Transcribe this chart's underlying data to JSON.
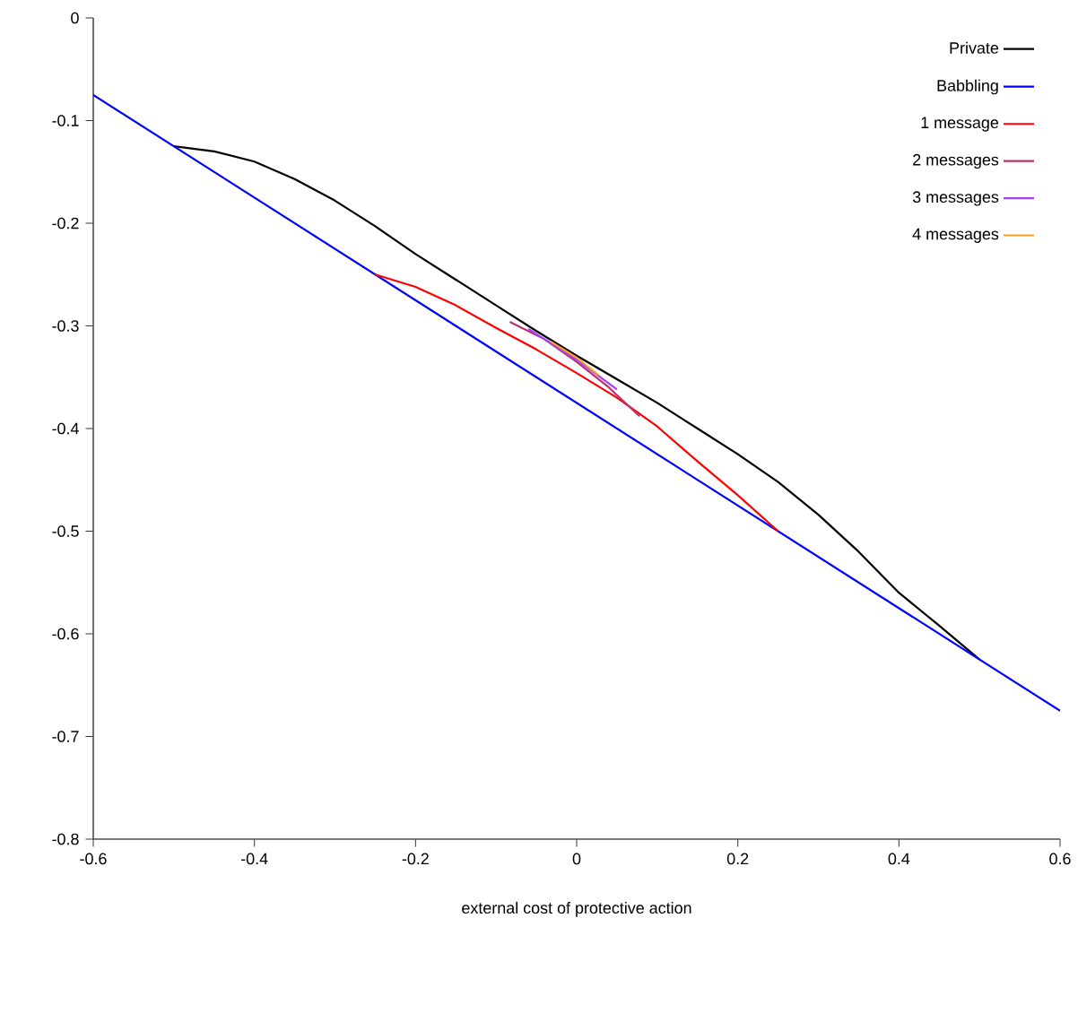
{
  "chart_data": {
    "type": "line",
    "xlabel": "external cost of protective action",
    "xlim": [
      -0.6,
      0.6
    ],
    "ylim": [
      -0.8,
      0
    ],
    "xticks": [
      -0.6,
      -0.4,
      -0.2,
      0,
      0.2,
      0.4,
      0.6
    ],
    "yticks": [
      -0.8,
      -0.7,
      -0.6,
      -0.5,
      -0.4,
      -0.3,
      -0.2,
      -0.1,
      0
    ],
    "legend": "top right",
    "marker": "none",
    "line_style": "solid",
    "series": [
      {
        "name": "Private",
        "color": "#000000",
        "x": [
          -0.5,
          -0.45,
          -0.4,
          -0.35,
          -0.3,
          -0.25,
          -0.2,
          -0.15,
          -0.1,
          -0.05,
          0,
          0.05,
          0.1,
          0.15,
          0.2,
          0.25,
          0.3,
          0.35,
          0.4,
          0.45,
          0.5
        ],
        "values": [
          -0.125,
          -0.13,
          -0.14,
          -0.157,
          -0.178,
          -0.203,
          -0.23,
          -0.255,
          -0.28,
          -0.305,
          -0.329,
          -0.352,
          -0.375,
          -0.4,
          -0.425,
          -0.452,
          -0.484,
          -0.52,
          -0.56,
          -0.592,
          -0.625
        ]
      },
      {
        "name": "Babbling",
        "color": "#0000ff",
        "x": [
          -0.6,
          0.6
        ],
        "values": [
          -0.075,
          -0.675
        ]
      },
      {
        "name": "1 message",
        "color": "#ff0000",
        "x": [
          -0.25,
          -0.2,
          -0.15,
          -0.1,
          -0.05,
          0,
          0.05,
          0.1,
          0.15,
          0.2,
          0.25
        ],
        "values": [
          -0.25,
          -0.262,
          -0.28,
          -0.302,
          -0.323,
          -0.346,
          -0.37,
          -0.398,
          -0.432,
          -0.465,
          -0.5
        ]
      },
      {
        "name": "2 messages",
        "color": "#c0306f",
        "x": [
          -0.083,
          -0.04,
          0,
          0.04,
          0.078
        ],
        "values": [
          -0.296,
          -0.313,
          -0.335,
          -0.36,
          -0.388
        ]
      },
      {
        "name": "3 messages",
        "color": "#a040ff",
        "x": [
          -0.06,
          0,
          0.05
        ],
        "values": [
          -0.303,
          -0.333,
          -0.362
        ]
      },
      {
        "name": "4 messages",
        "color": "#ffa020",
        "x": [
          -0.033,
          0,
          0.027
        ],
        "values": [
          -0.315,
          -0.331,
          -0.348
        ]
      }
    ]
  }
}
